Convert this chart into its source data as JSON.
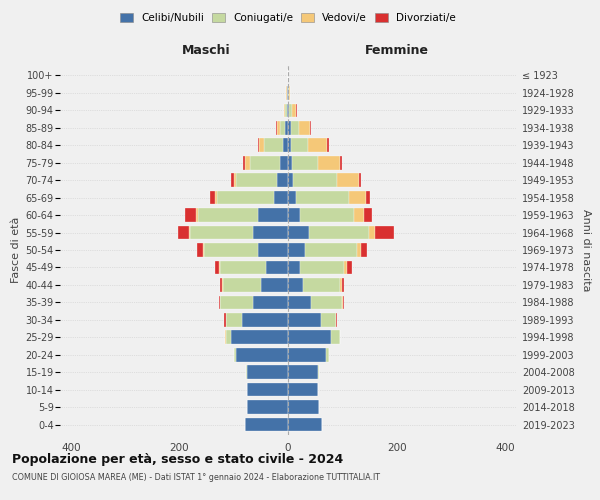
{
  "age_groups": [
    "0-4",
    "5-9",
    "10-14",
    "15-19",
    "20-24",
    "25-29",
    "30-34",
    "35-39",
    "40-44",
    "45-49",
    "50-54",
    "55-59",
    "60-64",
    "65-69",
    "70-74",
    "75-79",
    "80-84",
    "85-89",
    "90-94",
    "95-99",
    "100+"
  ],
  "birth_years": [
    "2019-2023",
    "2014-2018",
    "2009-2013",
    "2004-2008",
    "1999-2003",
    "1994-1998",
    "1989-1993",
    "1984-1988",
    "1979-1983",
    "1974-1978",
    "1969-1973",
    "1964-1968",
    "1959-1963",
    "1954-1958",
    "1949-1953",
    "1944-1948",
    "1939-1943",
    "1934-1938",
    "1929-1933",
    "1924-1928",
    "≤ 1923"
  ],
  "maschi": {
    "celibi": [
      80,
      75,
      75,
      75,
      95,
      105,
      85,
      65,
      50,
      40,
      55,
      65,
      55,
      25,
      20,
      15,
      10,
      5,
      2,
      1,
      0
    ],
    "coniugati": [
      0,
      0,
      1,
      2,
      5,
      10,
      30,
      60,
      70,
      85,
      100,
      115,
      110,
      105,
      75,
      55,
      35,
      10,
      3,
      1,
      0
    ],
    "vedovi": [
      0,
      0,
      0,
      0,
      0,
      1,
      0,
      1,
      1,
      2,
      2,
      3,
      5,
      5,
      5,
      10,
      8,
      5,
      3,
      2,
      0
    ],
    "divorziati": [
      0,
      0,
      0,
      0,
      0,
      0,
      3,
      2,
      5,
      8,
      10,
      20,
      20,
      8,
      5,
      3,
      2,
      2,
      0,
      0,
      0
    ]
  },
  "femmine": {
    "nubili": [
      62,
      58,
      55,
      55,
      70,
      80,
      60,
      42,
      28,
      22,
      32,
      38,
      22,
      15,
      10,
      8,
      5,
      5,
      2,
      0,
      0
    ],
    "coniugate": [
      0,
      0,
      1,
      2,
      5,
      15,
      28,
      58,
      68,
      82,
      95,
      112,
      100,
      98,
      80,
      48,
      32,
      15,
      5,
      1,
      0
    ],
    "vedove": [
      0,
      0,
      0,
      0,
      0,
      1,
      1,
      2,
      3,
      5,
      7,
      10,
      18,
      30,
      40,
      40,
      35,
      20,
      8,
      2,
      0
    ],
    "divorziate": [
      0,
      0,
      0,
      0,
      0,
      0,
      2,
      2,
      5,
      8,
      12,
      35,
      15,
      8,
      4,
      3,
      3,
      2,
      1,
      0,
      0
    ]
  },
  "colors": {
    "celibi_nubili": "#4472a8",
    "coniugati": "#c5d9a0",
    "vedovi": "#f5c878",
    "divorziati": "#d93030"
  },
  "xlim": [
    -420,
    420
  ],
  "xticks": [
    -400,
    -200,
    0,
    200,
    400
  ],
  "xticklabels": [
    "400",
    "200",
    "0",
    "200",
    "400"
  ],
  "title_main": "Popolazione per età, sesso e stato civile - 2024",
  "title_sub": "COMUNE DI GIOIOSA MAREA (ME) - Dati ISTAT 1° gennaio 2024 - Elaborazione TUTTITALIA.IT",
  "ylabel_left": "Fasce di età",
  "ylabel_right": "Anni di nascita",
  "label_maschi": "Maschi",
  "label_femmine": "Femmine",
  "legend_labels": [
    "Celibi/Nubili",
    "Coniugati/e",
    "Vedovi/e",
    "Divorziati/e"
  ],
  "bg_color": "#f0f0f0",
  "bar_height": 0.78
}
